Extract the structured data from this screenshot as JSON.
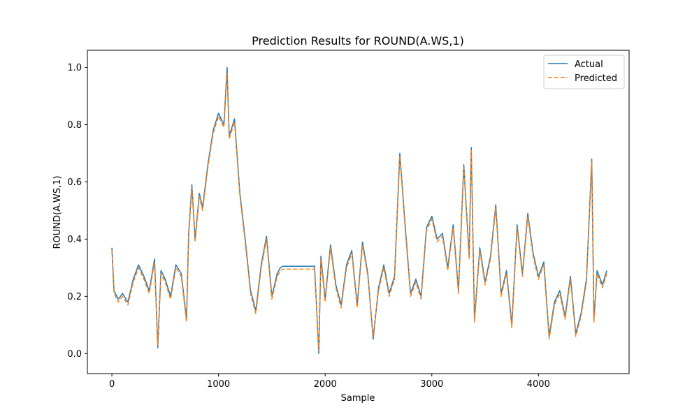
{
  "chart_data": {
    "type": "line",
    "title": "Prediction Results for ROUND(A.WS,1)",
    "xlabel": "Sample",
    "ylabel": "ROUND(A.WS,1)",
    "xlim": [
      -230,
      4850
    ],
    "ylim": [
      -0.07,
      1.06
    ],
    "xticks": [
      0,
      1000,
      2000,
      3000,
      4000
    ],
    "yticks": [
      0.0,
      0.2,
      0.4,
      0.6,
      0.8,
      1.0
    ],
    "xtick_labels": [
      "0",
      "1000",
      "2000",
      "3000",
      "4000"
    ],
    "ytick_labels": [
      "0.0",
      "0.2",
      "0.4",
      "0.6",
      "0.8",
      "1.0"
    ],
    "grid": false,
    "legend_position": "top-right",
    "series": [
      {
        "name": "Actual",
        "color": "#1f77b4",
        "style": "solid",
        "x": [
          0,
          20,
          60,
          100,
          150,
          200,
          250,
          300,
          350,
          400,
          430,
          460,
          500,
          550,
          600,
          650,
          700,
          720,
          750,
          780,
          820,
          850,
          900,
          950,
          1000,
          1050,
          1080,
          1100,
          1150,
          1200,
          1250,
          1300,
          1350,
          1400,
          1450,
          1500,
          1550,
          1580,
          1600,
          1700,
          1800,
          1900,
          1940,
          1960,
          2000,
          2050,
          2100,
          2150,
          2200,
          2250,
          2300,
          2350,
          2400,
          2450,
          2500,
          2550,
          2600,
          2650,
          2700,
          2750,
          2800,
          2850,
          2900,
          2950,
          3000,
          3050,
          3100,
          3150,
          3200,
          3250,
          3300,
          3350,
          3370,
          3400,
          3450,
          3500,
          3550,
          3600,
          3650,
          3700,
          3750,
          3800,
          3850,
          3900,
          3950,
          4000,
          4050,
          4100,
          4150,
          4200,
          4250,
          4300,
          4350,
          4400,
          4450,
          4500,
          4520,
          4550,
          4600,
          4640
        ],
        "values": [
          0.37,
          0.22,
          0.19,
          0.21,
          0.18,
          0.26,
          0.31,
          0.27,
          0.22,
          0.33,
          0.02,
          0.29,
          0.26,
          0.2,
          0.31,
          0.28,
          0.12,
          0.42,
          0.59,
          0.4,
          0.56,
          0.51,
          0.66,
          0.78,
          0.84,
          0.8,
          1.0,
          0.76,
          0.82,
          0.56,
          0.4,
          0.22,
          0.15,
          0.31,
          0.41,
          0.2,
          0.28,
          0.3,
          0.305,
          0.305,
          0.305,
          0.305,
          0.0,
          0.34,
          0.19,
          0.38,
          0.24,
          0.17,
          0.31,
          0.36,
          0.17,
          0.39,
          0.28,
          0.05,
          0.23,
          0.31,
          0.21,
          0.27,
          0.7,
          0.45,
          0.21,
          0.26,
          0.2,
          0.44,
          0.48,
          0.4,
          0.42,
          0.3,
          0.45,
          0.22,
          0.66,
          0.34,
          0.72,
          0.12,
          0.37,
          0.25,
          0.34,
          0.52,
          0.21,
          0.29,
          0.1,
          0.45,
          0.28,
          0.49,
          0.35,
          0.27,
          0.32,
          0.06,
          0.18,
          0.22,
          0.13,
          0.27,
          0.07,
          0.14,
          0.26,
          0.68,
          0.12,
          0.29,
          0.24,
          0.29
        ]
      },
      {
        "name": "Predicted",
        "color": "#ff7f0e",
        "style": "dashed",
        "x": [
          0,
          20,
          60,
          100,
          150,
          200,
          250,
          300,
          350,
          400,
          430,
          460,
          500,
          550,
          600,
          650,
          700,
          720,
          750,
          780,
          820,
          850,
          900,
          950,
          1000,
          1050,
          1080,
          1100,
          1150,
          1200,
          1250,
          1300,
          1350,
          1400,
          1450,
          1500,
          1550,
          1580,
          1600,
          1700,
          1800,
          1900,
          1940,
          1960,
          2000,
          2050,
          2100,
          2150,
          2200,
          2250,
          2300,
          2350,
          2400,
          2450,
          2500,
          2550,
          2600,
          2650,
          2700,
          2750,
          2800,
          2850,
          2900,
          2950,
          3000,
          3050,
          3100,
          3150,
          3200,
          3250,
          3300,
          3350,
          3370,
          3400,
          3450,
          3500,
          3550,
          3600,
          3650,
          3700,
          3750,
          3800,
          3850,
          3900,
          3950,
          4000,
          4050,
          4100,
          4150,
          4200,
          4250,
          4300,
          4350,
          4400,
          4450,
          4500,
          4520,
          4550,
          4600,
          4640
        ],
        "values": [
          0.36,
          0.21,
          0.18,
          0.2,
          0.17,
          0.25,
          0.3,
          0.26,
          0.21,
          0.32,
          0.03,
          0.28,
          0.25,
          0.19,
          0.3,
          0.27,
          0.11,
          0.41,
          0.58,
          0.39,
          0.55,
          0.5,
          0.65,
          0.77,
          0.83,
          0.79,
          0.98,
          0.75,
          0.81,
          0.55,
          0.39,
          0.21,
          0.14,
          0.3,
          0.4,
          0.19,
          0.27,
          0.29,
          0.295,
          0.295,
          0.295,
          0.295,
          0.01,
          0.33,
          0.18,
          0.37,
          0.23,
          0.16,
          0.3,
          0.35,
          0.16,
          0.38,
          0.27,
          0.06,
          0.22,
          0.3,
          0.2,
          0.26,
          0.69,
          0.44,
          0.2,
          0.25,
          0.19,
          0.43,
          0.47,
          0.39,
          0.41,
          0.29,
          0.44,
          0.21,
          0.65,
          0.33,
          0.71,
          0.11,
          0.36,
          0.24,
          0.33,
          0.51,
          0.2,
          0.28,
          0.09,
          0.44,
          0.27,
          0.48,
          0.34,
          0.26,
          0.31,
          0.05,
          0.17,
          0.21,
          0.12,
          0.26,
          0.06,
          0.13,
          0.25,
          0.67,
          0.11,
          0.28,
          0.23,
          0.28
        ]
      }
    ]
  }
}
